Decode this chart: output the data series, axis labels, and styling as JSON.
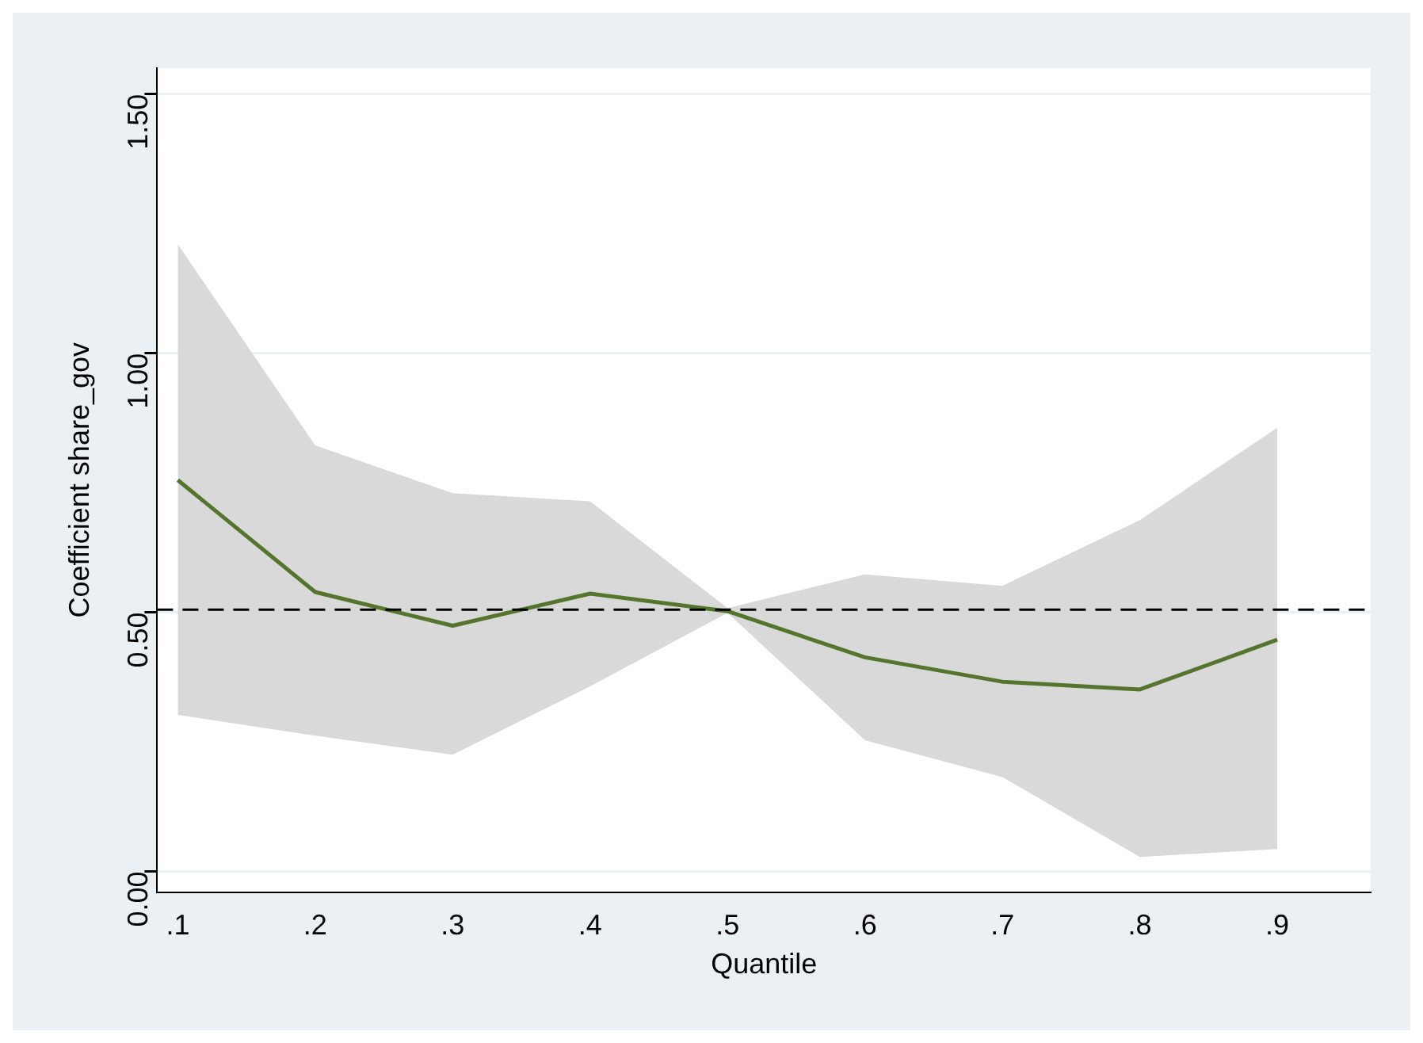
{
  "chart_data": {
    "type": "line",
    "xlabel": "Quantile",
    "ylabel": "Coefficient share_gov",
    "x": [
      0.1,
      0.2,
      0.3,
      0.4,
      0.5,
      0.6,
      0.7,
      0.8,
      0.9
    ],
    "series": [
      {
        "color": "#55752f",
        "values": [
          0.755,
          0.539,
          0.474,
          0.536,
          0.502,
          0.413,
          0.366,
          0.351,
          0.447
        ],
        "lower": [
          0.302,
          0.262,
          0.225,
          0.357,
          0.499,
          0.253,
          0.182,
          0.028,
          0.043
        ],
        "upper": [
          1.21,
          0.822,
          0.73,
          0.714,
          0.508,
          0.573,
          0.551,
          0.678,
          0.856
        ]
      }
    ],
    "xlim": [
      0.085,
      0.968
    ],
    "ylim": [
      -0.04,
      1.55
    ],
    "xticks": [
      {
        "value": 0.1,
        "label": ".1"
      },
      {
        "value": 0.2,
        "label": ".2"
      },
      {
        "value": 0.3,
        "label": ".3"
      },
      {
        "value": 0.4,
        "label": ".4"
      },
      {
        "value": 0.5,
        "label": ".5"
      },
      {
        "value": 0.6,
        "label": ".6"
      },
      {
        "value": 0.7,
        "label": ".7"
      },
      {
        "value": 0.8,
        "label": ".8"
      },
      {
        "value": 0.9,
        "label": ".9"
      }
    ],
    "yticks": [
      {
        "value": 0,
        "label": "0.00"
      },
      {
        "value": 0.5,
        "label": "0.50"
      },
      {
        "value": 1,
        "label": "1.00"
      },
      {
        "value": 1.5,
        "label": "1.50"
      }
    ],
    "ref_lines": [
      {
        "axis": "y",
        "value": 0.505,
        "color": "#000000",
        "line_style": "dashed"
      }
    ],
    "grid": "y",
    "legend": false,
    "marker": "none",
    "line_style": "solid"
  }
}
